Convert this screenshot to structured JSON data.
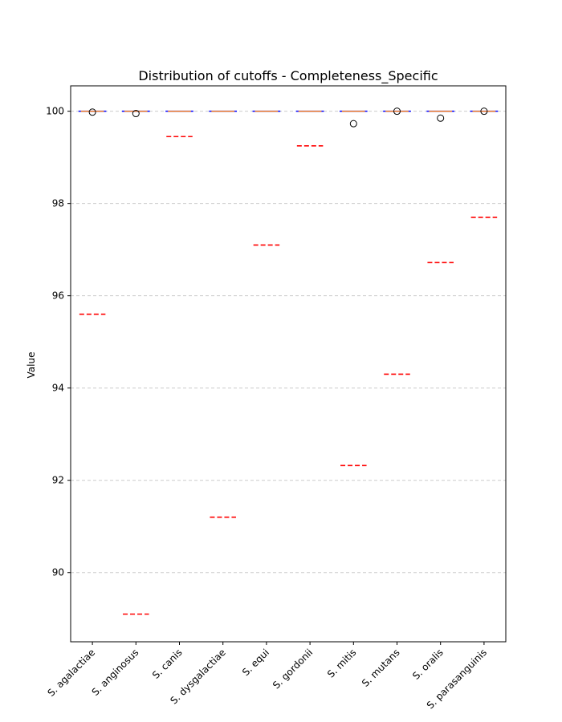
{
  "chart_data": {
    "type": "box",
    "title": "Distribution of cutoffs - Completeness_Specific",
    "xlabel": "",
    "ylabel": "Value",
    "ylim": [
      88.5,
      100.55
    ],
    "yticks": [
      90,
      92,
      94,
      96,
      98,
      100
    ],
    "grid": "y-dashed",
    "categories": [
      "S. agalactiae",
      "S. anginosus",
      "S. canis",
      "S. dysgalactiae",
      "S. equi",
      "S. gordonii",
      "S. mitis",
      "S. mutans",
      "S. oralis",
      "S. parasanguinis"
    ],
    "box_median": [
      100,
      100,
      100,
      100,
      100,
      100,
      100,
      100,
      100,
      100
    ],
    "outliers": [
      [
        99.98
      ],
      [
        99.95
      ],
      [],
      [],
      [],
      [],
      [
        99.73
      ],
      [
        100.0
      ],
      [
        99.85
      ],
      [
        100.0
      ]
    ],
    "cutoff_lines": [
      95.6,
      89.1,
      99.45,
      91.2,
      97.1,
      99.25,
      92.32,
      94.3,
      96.72,
      97.7
    ],
    "colors": {
      "box": "#0000ff",
      "median": "#ff7f0e",
      "cutoff": "#ff0000",
      "grid": "#cccccc"
    }
  }
}
